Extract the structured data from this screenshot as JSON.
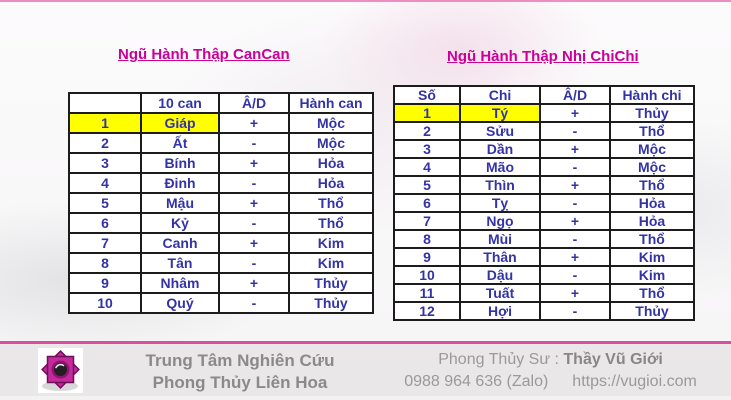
{
  "page": {
    "accent_pink": "#d94f9e",
    "title_color": "#cc0099",
    "table_text_color": "#3333a6",
    "highlight_yellow": "#ffff00"
  },
  "left_section": {
    "title": "Ngũ Hành Thập CanCan",
    "table": {
      "headers": [
        "",
        "10 can",
        "Â/D",
        "Hành can"
      ],
      "rows": [
        {
          "num": "1",
          "name": "Giáp",
          "ad": "+",
          "hanh": "Mộc",
          "highlight": true
        },
        {
          "num": "2",
          "name": "Ất",
          "ad": "-",
          "hanh": "Mộc"
        },
        {
          "num": "3",
          "name": "Bính",
          "ad": "+",
          "hanh": "Hỏa"
        },
        {
          "num": "4",
          "name": "Đinh",
          "ad": "-",
          "hanh": "Hỏa"
        },
        {
          "num": "5",
          "name": "Mậu",
          "ad": "+",
          "hanh": "Thổ"
        },
        {
          "num": "6",
          "name": "Kỷ",
          "ad": "-",
          "hanh": "Thổ"
        },
        {
          "num": "7",
          "name": "Canh",
          "ad": "+",
          "hanh": "Kim"
        },
        {
          "num": "8",
          "name": "Tân",
          "ad": "-",
          "hanh": "Kim"
        },
        {
          "num": "9",
          "name": "Nhâm",
          "ad": "+",
          "hanh": "Thủy"
        },
        {
          "num": "10",
          "name": "Quý",
          "ad": "-",
          "hanh": "Thủy"
        }
      ]
    }
  },
  "right_section": {
    "title": "Ngũ Hành Thập Nhị ChiChi",
    "table": {
      "headers": [
        "Số",
        "Chi",
        "Â/D",
        "Hành chi"
      ],
      "rows": [
        {
          "num": "1",
          "name": "Tý",
          "ad": "+",
          "hanh": "Thủy",
          "highlight": true
        },
        {
          "num": "2",
          "name": "Sửu",
          "ad": "-",
          "hanh": "Thổ"
        },
        {
          "num": "3",
          "name": "Dần",
          "ad": "+",
          "hanh": "Mộc"
        },
        {
          "num": "4",
          "name": "Mão",
          "ad": "-",
          "hanh": "Mộc"
        },
        {
          "num": "5",
          "name": "Thìn",
          "ad": "+",
          "hanh": "Thổ"
        },
        {
          "num": "6",
          "name": "Tỵ",
          "ad": "-",
          "hanh": "Hỏa"
        },
        {
          "num": "7",
          "name": "Ngọ",
          "ad": "+",
          "hanh": "Hỏa"
        },
        {
          "num": "8",
          "name": "Mùi",
          "ad": "-",
          "hanh": "Thổ"
        },
        {
          "num": "9",
          "name": "Thân",
          "ad": "+",
          "hanh": "Kim"
        },
        {
          "num": "10",
          "name": "Dậu",
          "ad": "-",
          "hanh": "Kim"
        },
        {
          "num": "11",
          "name": "Tuất",
          "ad": "+",
          "hanh": "Thổ"
        },
        {
          "num": "12",
          "name": "Hợi",
          "ad": "-",
          "hanh": "Thủy"
        }
      ]
    }
  },
  "footer": {
    "org_line1": "Trung Tâm Nghiên Cứu",
    "org_line2": "Phong Thủy Liên Hoa",
    "master_label": "Phong Thủy Sư :",
    "master_name": "Thầy Vũ Giới",
    "phone": "0988 964 636 (Zalo)",
    "website": "https://vugioi.com",
    "logo_icon": "lotus-star-icon"
  }
}
